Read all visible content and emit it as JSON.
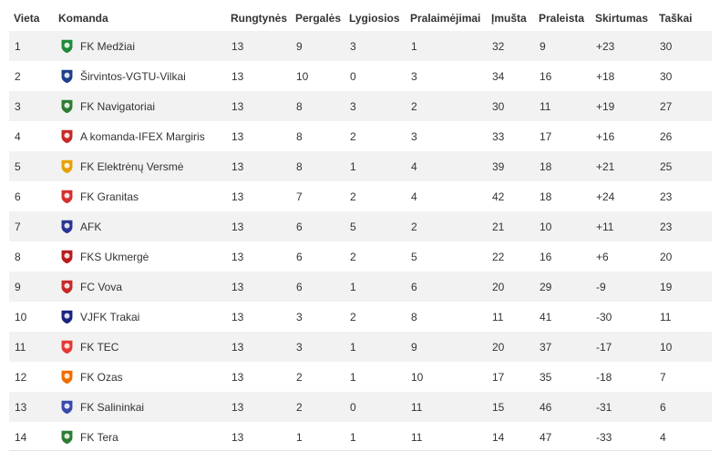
{
  "headers": {
    "place": "Vieta",
    "team": "Komanda",
    "played": "Rungtynės",
    "wins": "Pergalės",
    "draws": "Lygiosios",
    "losses": "Pralaimėjimai",
    "scored": "Įmušta",
    "conceded": "Praleista",
    "diff": "Skirtumas",
    "points": "Taškai"
  },
  "rows": [
    {
      "place": "1",
      "team": "FK Medžiai",
      "played": "13",
      "wins": "9",
      "draws": "3",
      "losses": "1",
      "scored": "32",
      "conceded": "9",
      "diff": "+23",
      "points": "30",
      "logo": "medziai-logo-icon",
      "color": "#1f8a3a"
    },
    {
      "place": "2",
      "team": "Širvintos-VGTU-Vilkai",
      "played": "13",
      "wins": "10",
      "draws": "0",
      "losses": "3",
      "scored": "34",
      "conceded": "16",
      "diff": "+18",
      "points": "30",
      "logo": "vilkai-logo-icon",
      "color": "#1e3f8a"
    },
    {
      "place": "3",
      "team": "FK Navigatoriai",
      "played": "13",
      "wins": "8",
      "draws": "3",
      "losses": "2",
      "scored": "30",
      "conceded": "11",
      "diff": "+19",
      "points": "27",
      "logo": "navigatoriai-logo-icon",
      "color": "#2e7d32"
    },
    {
      "place": "4",
      "team": "A komanda-IFEX Margiris",
      "played": "13",
      "wins": "8",
      "draws": "2",
      "losses": "3",
      "scored": "33",
      "conceded": "17",
      "diff": "+16",
      "points": "26",
      "logo": "margiris-logo-icon",
      "color": "#c62828"
    },
    {
      "place": "5",
      "team": "FK Elektrėnų Versmė",
      "played": "13",
      "wins": "8",
      "draws": "1",
      "losses": "4",
      "scored": "39",
      "conceded": "18",
      "diff": "+21",
      "points": "25",
      "logo": "versme-logo-icon",
      "color": "#e6a100"
    },
    {
      "place": "6",
      "team": "FK Granitas",
      "played": "13",
      "wins": "7",
      "draws": "2",
      "losses": "4",
      "scored": "42",
      "conceded": "18",
      "diff": "+24",
      "points": "23",
      "logo": "granitas-logo-icon",
      "color": "#d32f2f"
    },
    {
      "place": "7",
      "team": "AFK",
      "played": "13",
      "wins": "6",
      "draws": "5",
      "losses": "2",
      "scored": "21",
      "conceded": "10",
      "diff": "+11",
      "points": "23",
      "logo": "afk-logo-icon",
      "color": "#283593"
    },
    {
      "place": "8",
      "team": "FKS Ukmergė",
      "played": "13",
      "wins": "6",
      "draws": "2",
      "losses": "5",
      "scored": "22",
      "conceded": "16",
      "diff": "+6",
      "points": "20",
      "logo": "ukmerge-logo-icon",
      "color": "#b71c1c"
    },
    {
      "place": "9",
      "team": "FC Vova",
      "played": "13",
      "wins": "6",
      "draws": "1",
      "losses": "6",
      "scored": "20",
      "conceded": "29",
      "diff": "-9",
      "points": "19",
      "logo": "vova-logo-icon",
      "color": "#c62828"
    },
    {
      "place": "10",
      "team": "VJFK Trakai",
      "played": "13",
      "wins": "3",
      "draws": "2",
      "losses": "8",
      "scored": "11",
      "conceded": "41",
      "diff": "-30",
      "points": "11",
      "logo": "trakai-logo-icon",
      "color": "#1a237e"
    },
    {
      "place": "11",
      "team": "FK TEC",
      "played": "13",
      "wins": "3",
      "draws": "1",
      "losses": "9",
      "scored": "20",
      "conceded": "37",
      "diff": "-17",
      "points": "10",
      "logo": "tec-logo-icon",
      "color": "#e53935"
    },
    {
      "place": "12",
      "team": "FK Ozas",
      "played": "13",
      "wins": "2",
      "draws": "1",
      "losses": "10",
      "scored": "17",
      "conceded": "35",
      "diff": "-18",
      "points": "7",
      "logo": "ozas-logo-icon",
      "color": "#ef6c00"
    },
    {
      "place": "13",
      "team": "FK Salininkai",
      "played": "13",
      "wins": "2",
      "draws": "0",
      "losses": "11",
      "scored": "15",
      "conceded": "46",
      "diff": "-31",
      "points": "6",
      "logo": "salininkai-logo-icon",
      "color": "#3949ab"
    },
    {
      "place": "14",
      "team": "FK Tera",
      "played": "13",
      "wins": "1",
      "draws": "1",
      "losses": "11",
      "scored": "14",
      "conceded": "47",
      "diff": "-33",
      "points": "4",
      "logo": "tera-logo-icon",
      "color": "#2e7d32"
    }
  ]
}
